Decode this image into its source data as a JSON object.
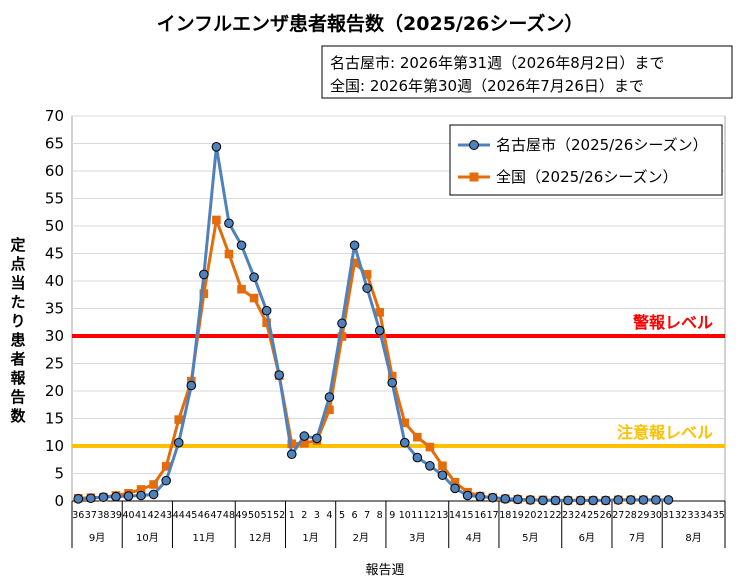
{
  "chart_data": {
    "type": "line",
    "title": "インフルエンザ患者報告数（2025/26シーズン）",
    "note_lines": [
      "名古屋市: 2026年第31週（2026年8月2日）まで",
      "全国: 2026年第30週（2026年7月26日）まで"
    ],
    "ylabel_chars": [
      "定",
      "点",
      "当",
      "た",
      "り",
      "患",
      "者",
      "報",
      "告",
      "数"
    ],
    "xlabel": "報告週",
    "ylim": [
      0,
      70
    ],
    "yticks": [
      "0",
      "5",
      "10",
      "15",
      "20",
      "25",
      "30",
      "35",
      "40",
      "45",
      "50",
      "55",
      "60",
      "65",
      "70"
    ],
    "x": [
      "36",
      "37",
      "38",
      "39",
      "40",
      "41",
      "42",
      "43",
      "44",
      "45",
      "46",
      "47",
      "48",
      "49",
      "50",
      "51",
      "52",
      "1",
      "2",
      "3",
      "4",
      "5",
      "6",
      "7",
      "8",
      "9",
      "10",
      "11",
      "12",
      "13",
      "14",
      "15",
      "16",
      "17",
      "18",
      "19",
      "20",
      "21",
      "22",
      "23",
      "24",
      "25",
      "26",
      "27",
      "28",
      "29",
      "30",
      "31",
      "32",
      "33",
      "34",
      "35"
    ],
    "months": [
      {
        "label": "9月",
        "count": 4
      },
      {
        "label": "10月",
        "count": 4
      },
      {
        "label": "11月",
        "count": 5
      },
      {
        "label": "12月",
        "count": 4
      },
      {
        "label": "1月",
        "count": 4
      },
      {
        "label": "2月",
        "count": 4
      },
      {
        "label": "3月",
        "count": 5
      },
      {
        "label": "4月",
        "count": 4
      },
      {
        "label": "5月",
        "count": 5
      },
      {
        "label": "6月",
        "count": 4
      },
      {
        "label": "7月",
        "count": 4
      },
      {
        "label": "8月",
        "count": 5
      }
    ],
    "series": [
      {
        "name": "名古屋市（2025/26シーズン）",
        "color": "#4f81bd",
        "marker": "circle",
        "values": [
          0.4,
          0.5,
          0.7,
          0.8,
          0.9,
          1.0,
          1.2,
          3.7,
          10.6,
          21.0,
          41.2,
          64.4,
          50.5,
          46.5,
          40.7,
          34.6,
          22.9,
          8.5,
          11.8,
          11.4,
          18.9,
          32.3,
          46.5,
          38.7,
          31.0,
          21.5,
          10.6,
          7.9,
          6.4,
          4.7,
          2.3,
          1.0,
          0.8,
          0.6,
          0.4,
          0.3,
          0.2,
          0.1,
          0.1,
          0.1,
          0.1,
          0.1,
          0.1,
          0.2,
          0.2,
          0.2,
          0.2,
          0.2,
          null,
          null,
          null,
          null
        ]
      },
      {
        "name": "全国（2025/26シーズン）",
        "color": "#e46c0a",
        "marker": "square",
        "values": [
          0.5,
          0.6,
          0.7,
          1.0,
          1.4,
          2.1,
          3.0,
          6.3,
          14.8,
          21.8,
          37.7,
          51.1,
          44.9,
          38.5,
          36.9,
          32.4,
          22.8,
          10.4,
          10.5,
          11.0,
          16.6,
          29.9,
          43.3,
          41.2,
          34.3,
          22.7,
          14.2,
          11.6,
          9.8,
          6.4,
          3.4,
          1.6,
          0.9,
          0.6,
          0.4,
          0.3,
          0.2,
          0.2,
          0.1,
          0.1,
          0.1,
          0.1,
          0.1,
          0.2,
          0.2,
          0.2,
          0.2,
          null,
          null,
          null,
          null,
          null
        ]
      }
    ],
    "thresholds": [
      {
        "label": "警報レベル",
        "value": 30,
        "color": "#ff0000"
      },
      {
        "label": "注意報レベル",
        "value": 10,
        "color": "#ffc000"
      }
    ],
    "legend_position": "top-right",
    "grid": true
  }
}
